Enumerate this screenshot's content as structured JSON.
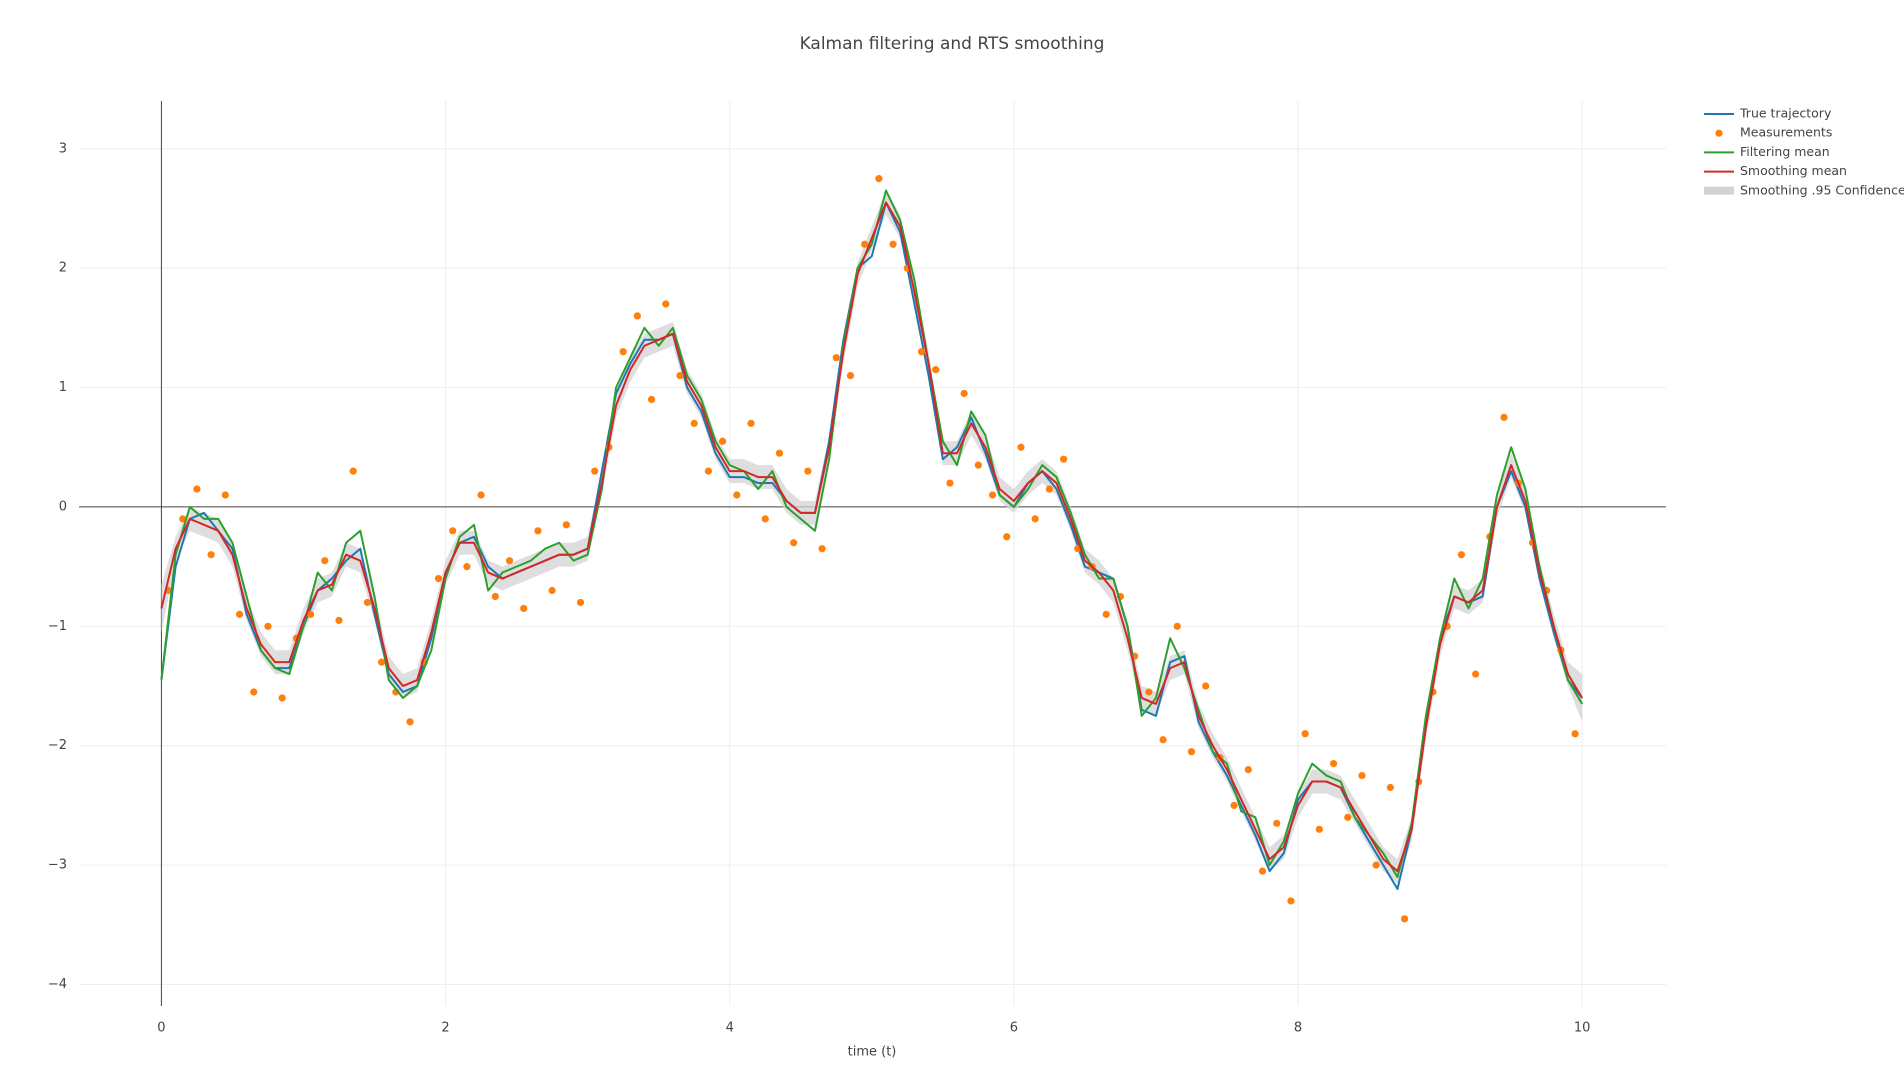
{
  "chart_data": {
    "type": "line",
    "title": "Kalman filtering and RTS smoothing",
    "x_label": "time (t)",
    "x": [
      0,
      0.1,
      0.2,
      0.3,
      0.4,
      0.5,
      0.6,
      0.7,
      0.8,
      0.9,
      1,
      1.1,
      1.2,
      1.3,
      1.4,
      1.5,
      1.6,
      1.7,
      1.8,
      1.9,
      2,
      2.1,
      2.2,
      2.3,
      2.4,
      2.5,
      2.6,
      2.7,
      2.8,
      2.9,
      3,
      3.1,
      3.2,
      3.3,
      3.4,
      3.5,
      3.6,
      3.7,
      3.8,
      3.9,
      4,
      4.1,
      4.2,
      4.3,
      4.4,
      4.5,
      4.6,
      4.7,
      4.8,
      4.9,
      5,
      5.1,
      5.2,
      5.3,
      5.4,
      5.5,
      5.6,
      5.7,
      5.8,
      5.9,
      6,
      6.1,
      6.2,
      6.3,
      6.4,
      6.5,
      6.6,
      6.7,
      6.8,
      6.9,
      7,
      7.1,
      7.2,
      7.3,
      7.4,
      7.5,
      7.6,
      7.7,
      7.8,
      7.9,
      8,
      8.1,
      8.2,
      8.3,
      8.4,
      8.5,
      8.6,
      8.7,
      8.8,
      8.9,
      9,
      9.1,
      9.2,
      9.3,
      9.4,
      9.5,
      9.6,
      9.7,
      9.8,
      9.9,
      10
    ],
    "series": [
      {
        "name": "Smoothing .95 Confidence",
        "color": "#d3d3d3",
        "kind": "band",
        "upper": [
          -0.65,
          -0.25,
          0.0,
          -0.05,
          -0.1,
          -0.3,
          -0.75,
          -1.05,
          -1.2,
          -1.2,
          -0.85,
          -0.6,
          -0.55,
          -0.3,
          -0.35,
          -0.75,
          -1.25,
          -1.4,
          -1.35,
          -0.95,
          -0.45,
          -0.2,
          -0.2,
          -0.45,
          -0.5,
          -0.45,
          -0.4,
          -0.35,
          -0.3,
          -0.3,
          -0.25,
          0.3,
          0.95,
          1.25,
          1.45,
          1.5,
          1.55,
          1.15,
          0.95,
          0.6,
          0.4,
          0.4,
          0.35,
          0.35,
          0.15,
          0.05,
          0.05,
          0.6,
          1.4,
          2.05,
          2.35,
          2.65,
          2.45,
          1.9,
          1.3,
          0.55,
          0.55,
          0.8,
          0.6,
          0.25,
          0.15,
          0.3,
          0.4,
          0.3,
          0.0,
          -0.35,
          -0.45,
          -0.6,
          -1.0,
          -1.5,
          -1.55,
          -1.25,
          -1.2,
          -1.65,
          -1.9,
          -2.1,
          -2.35,
          -2.6,
          -2.85,
          -2.75,
          -2.4,
          -2.2,
          -2.2,
          -2.25,
          -2.45,
          -2.65,
          -2.85,
          -2.95,
          -2.6,
          -1.75,
          -1.05,
          -0.65,
          -0.7,
          -0.6,
          0.1,
          0.45,
          0.15,
          -0.45,
          -0.9,
          -1.3,
          -1.4
        ],
        "lower": [
          -1.05,
          -0.45,
          -0.2,
          -0.25,
          -0.3,
          -0.5,
          -0.95,
          -1.25,
          -1.4,
          -1.4,
          -1.05,
          -0.8,
          -0.75,
          -0.5,
          -0.55,
          -0.95,
          -1.45,
          -1.6,
          -1.55,
          -1.15,
          -0.65,
          -0.4,
          -0.4,
          -0.65,
          -0.7,
          -0.65,
          -0.6,
          -0.55,
          -0.5,
          -0.5,
          -0.45,
          0.1,
          0.75,
          1.05,
          1.25,
          1.3,
          1.35,
          0.95,
          0.75,
          0.4,
          0.2,
          0.2,
          0.15,
          0.15,
          -0.05,
          -0.15,
          -0.15,
          0.4,
          1.2,
          1.85,
          2.15,
          2.45,
          2.25,
          1.7,
          1.1,
          0.35,
          0.35,
          0.6,
          0.4,
          0.05,
          -0.05,
          0.1,
          0.2,
          0.1,
          -0.2,
          -0.55,
          -0.65,
          -0.8,
          -1.2,
          -1.7,
          -1.75,
          -1.45,
          -1.4,
          -1.85,
          -2.1,
          -2.3,
          -2.55,
          -2.8,
          -3.05,
          -2.95,
          -2.6,
          -2.4,
          -2.4,
          -2.45,
          -2.65,
          -2.85,
          -3.05,
          -3.15,
          -2.8,
          -1.95,
          -1.25,
          -0.85,
          -0.9,
          -0.8,
          -0.1,
          0.25,
          -0.05,
          -0.65,
          -1.1,
          -1.5,
          -1.8
        ]
      },
      {
        "name": "True trajectory",
        "color": "#1f77b4",
        "kind": "line",
        "values": [
          -1.45,
          -0.5,
          -0.1,
          -0.05,
          -0.2,
          -0.35,
          -0.9,
          -1.2,
          -1.35,
          -1.35,
          -1.0,
          -0.7,
          -0.6,
          -0.45,
          -0.35,
          -0.9,
          -1.4,
          -1.55,
          -1.5,
          -1.1,
          -0.55,
          -0.3,
          -0.25,
          -0.5,
          -0.6,
          -0.55,
          -0.5,
          -0.45,
          -0.4,
          -0.4,
          -0.35,
          0.3,
          0.95,
          1.2,
          1.4,
          1.4,
          1.45,
          1.0,
          0.8,
          0.45,
          0.25,
          0.25,
          0.2,
          0.2,
          0.05,
          -0.05,
          -0.05,
          0.55,
          1.4,
          2.0,
          2.1,
          2.55,
          2.3,
          1.7,
          1.1,
          0.4,
          0.5,
          0.75,
          0.45,
          0.1,
          0.0,
          0.2,
          0.3,
          0.15,
          -0.15,
          -0.5,
          -0.55,
          -0.6,
          -1.0,
          -1.7,
          -1.75,
          -1.3,
          -1.25,
          -1.8,
          -2.05,
          -2.25,
          -2.5,
          -2.75,
          -3.05,
          -2.9,
          -2.45,
          -2.3,
          -2.3,
          -2.35,
          -2.6,
          -2.8,
          -3.0,
          -3.2,
          -2.7,
          -1.8,
          -1.1,
          -0.75,
          -0.8,
          -0.75,
          0.0,
          0.3,
          0.0,
          -0.6,
          -1.05,
          -1.45,
          -1.6
        ]
      },
      {
        "name": "Measurements",
        "color": "#ff7f0e",
        "kind": "markers",
        "x": [
          0.05,
          0.15,
          0.25,
          0.35,
          0.45,
          0.55,
          0.65,
          0.75,
          0.85,
          0.95,
          1.05,
          1.15,
          1.25,
          1.35,
          1.45,
          1.55,
          1.65,
          1.75,
          1.85,
          1.95,
          2.05,
          2.15,
          2.25,
          2.35,
          2.45,
          2.55,
          2.65,
          2.75,
          2.85,
          2.95,
          3.05,
          3.15,
          3.25,
          3.35,
          3.45,
          3.55,
          3.65,
          3.75,
          3.85,
          3.95,
          4.05,
          4.15,
          4.25,
          4.35,
          4.45,
          4.55,
          4.65,
          4.75,
          4.85,
          4.95,
          5.05,
          5.15,
          5.25,
          5.35,
          5.45,
          5.55,
          5.65,
          5.75,
          5.85,
          5.95,
          6.05,
          6.15,
          6.25,
          6.35,
          6.45,
          6.55,
          6.65,
          6.75,
          6.85,
          6.95,
          7.05,
          7.15,
          7.25,
          7.35,
          7.45,
          7.55,
          7.65,
          7.75,
          7.85,
          7.95,
          8.05,
          8.15,
          8.25,
          8.35,
          8.45,
          8.55,
          8.65,
          8.75,
          8.85,
          8.95,
          9.05,
          9.15,
          9.25,
          9.35,
          9.45,
          9.55,
          9.65,
          9.75,
          9.85,
          9.95
        ],
        "values": [
          -0.7,
          -0.1,
          0.15,
          -0.4,
          0.1,
          -0.9,
          -1.55,
          -1.0,
          -1.6,
          -1.1,
          -0.9,
          -0.45,
          -0.95,
          0.3,
          -0.8,
          -1.3,
          -1.55,
          -1.8,
          -1.3,
          -0.6,
          -0.2,
          -0.5,
          0.1,
          -0.75,
          -0.45,
          -0.85,
          -0.2,
          -0.7,
          -0.15,
          -0.8,
          0.3,
          0.5,
          1.3,
          1.6,
          0.9,
          1.7,
          1.1,
          0.7,
          0.3,
          0.55,
          0.1,
          0.7,
          -0.1,
          0.45,
          -0.3,
          0.3,
          -0.35,
          1.25,
          1.1,
          2.2,
          2.75,
          2.2,
          2.0,
          1.3,
          1.15,
          0.2,
          0.95,
          0.35,
          0.1,
          -0.25,
          0.5,
          -0.1,
          0.15,
          0.4,
          -0.35,
          -0.5,
          -0.9,
          -0.75,
          -1.25,
          -1.55,
          -1.95,
          -1.0,
          -2.05,
          -1.5,
          -2.1,
          -2.5,
          -2.2,
          -3.05,
          -2.65,
          -3.3,
          -1.9,
          -2.7,
          -2.15,
          -2.6,
          -2.25,
          -3.0,
          -2.35,
          -3.45,
          -2.3,
          -1.55,
          -1.0,
          -0.4,
          -1.4,
          -0.25,
          0.75,
          0.2,
          -0.3,
          -0.7,
          -1.2,
          -1.9
        ]
      },
      {
        "name": "Filtering mean",
        "color": "#2ca02c",
        "kind": "line",
        "values": [
          -1.45,
          -0.4,
          0.0,
          -0.1,
          -0.1,
          -0.3,
          -0.75,
          -1.2,
          -1.35,
          -1.4,
          -1.0,
          -0.55,
          -0.7,
          -0.3,
          -0.2,
          -0.75,
          -1.45,
          -1.6,
          -1.5,
          -1.2,
          -0.6,
          -0.25,
          -0.15,
          -0.7,
          -0.55,
          -0.5,
          -0.45,
          -0.35,
          -0.3,
          -0.45,
          -0.4,
          0.15,
          1.0,
          1.25,
          1.5,
          1.35,
          1.5,
          1.1,
          0.9,
          0.55,
          0.35,
          0.3,
          0.15,
          0.3,
          0.0,
          -0.1,
          -0.2,
          0.4,
          1.35,
          2.0,
          2.2,
          2.65,
          2.4,
          1.9,
          1.2,
          0.55,
          0.35,
          0.8,
          0.6,
          0.1,
          0.0,
          0.15,
          0.35,
          0.25,
          -0.05,
          -0.4,
          -0.6,
          -0.6,
          -1.0,
          -1.75,
          -1.6,
          -1.1,
          -1.35,
          -1.7,
          -2.05,
          -2.15,
          -2.55,
          -2.6,
          -3.0,
          -2.8,
          -2.4,
          -2.15,
          -2.25,
          -2.3,
          -2.6,
          -2.75,
          -2.9,
          -3.1,
          -2.65,
          -1.75,
          -1.1,
          -0.6,
          -0.85,
          -0.6,
          0.1,
          0.5,
          0.15,
          -0.5,
          -1.0,
          -1.45,
          -1.65
        ]
      },
      {
        "name": "Smoothing mean",
        "color": "#d62728",
        "kind": "line",
        "values": [
          -0.85,
          -0.35,
          -0.1,
          -0.15,
          -0.2,
          -0.4,
          -0.85,
          -1.15,
          -1.3,
          -1.3,
          -0.95,
          -0.7,
          -0.65,
          -0.4,
          -0.45,
          -0.85,
          -1.35,
          -1.5,
          -1.45,
          -1.05,
          -0.55,
          -0.3,
          -0.3,
          -0.55,
          -0.6,
          -0.55,
          -0.5,
          -0.45,
          -0.4,
          -0.4,
          -0.35,
          0.2,
          0.85,
          1.15,
          1.35,
          1.4,
          1.45,
          1.05,
          0.85,
          0.5,
          0.3,
          0.3,
          0.25,
          0.25,
          0.05,
          -0.05,
          -0.05,
          0.5,
          1.3,
          1.95,
          2.25,
          2.55,
          2.35,
          1.8,
          1.2,
          0.45,
          0.45,
          0.7,
          0.5,
          0.15,
          0.05,
          0.2,
          0.3,
          0.2,
          -0.1,
          -0.45,
          -0.55,
          -0.7,
          -1.1,
          -1.6,
          -1.65,
          -1.35,
          -1.3,
          -1.75,
          -2.0,
          -2.2,
          -2.45,
          -2.7,
          -2.95,
          -2.85,
          -2.5,
          -2.3,
          -2.3,
          -2.35,
          -2.55,
          -2.75,
          -2.95,
          -3.05,
          -2.7,
          -1.85,
          -1.15,
          -0.75,
          -0.8,
          -0.7,
          0.0,
          0.35,
          0.05,
          -0.55,
          -1.0,
          -1.4,
          -1.6
        ]
      }
    ],
    "legend_order": [
      1,
      2,
      3,
      4,
      0
    ],
    "xlim": [
      -0.58,
      10.59
    ],
    "ylim": [
      -4.18,
      3.4
    ],
    "xticks": [
      0,
      2,
      4,
      6,
      8,
      10
    ],
    "yticks": [
      {
        "value": -4,
        "label": "−4"
      },
      {
        "value": -3,
        "label": "−3"
      },
      {
        "value": -2,
        "label": "−2"
      },
      {
        "value": -1,
        "label": "−1"
      },
      0,
      1,
      2,
      3
    ],
    "grid": true,
    "zeroline": true,
    "legend": "top-right"
  }
}
